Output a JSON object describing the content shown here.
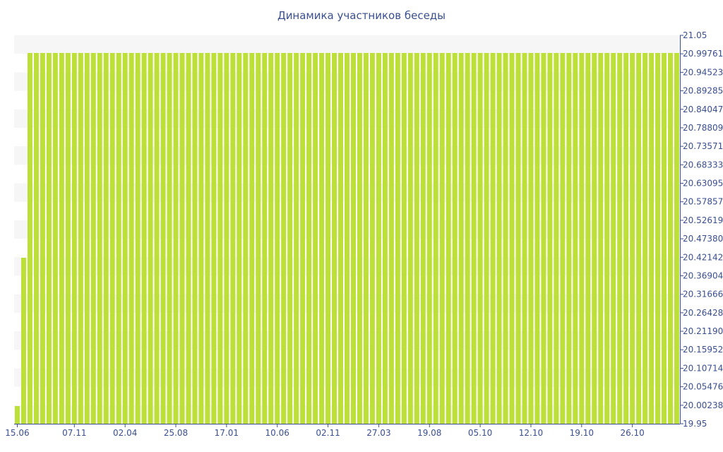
{
  "chart_data": {
    "type": "bar",
    "title": "Динамика участников беседы",
    "xlabel": "",
    "ylabel": "",
    "ylim": [
      19.95,
      21.05
    ],
    "y_ticks": [
      "19.95",
      "20.00238",
      "20.05476",
      "20.10714",
      "20.15952",
      "20.21190",
      "20.26428",
      "20.31666",
      "20.36904",
      "20.42142",
      "20.47380",
      "20.52619",
      "20.57857",
      "20.63095",
      "20.68333",
      "20.73571",
      "20.78809",
      "20.84047",
      "20.89285",
      "20.94523",
      "20.99761",
      "21.05"
    ],
    "x_tick_labels": [
      "15.06",
      "07.11",
      "02.04",
      "25.08",
      "17.01",
      "10.06",
      "02.11",
      "27.03",
      "19.08",
      "05.10",
      "12.10",
      "19.10",
      "26.10"
    ],
    "x_tick_positions": [
      0,
      9,
      17,
      25,
      33,
      41,
      49,
      57,
      65,
      73,
      81,
      89,
      97
    ],
    "bar_count": 105,
    "values": [
      20.0,
      20.42,
      21,
      21,
      21,
      21,
      21,
      21,
      21,
      21,
      21,
      21,
      21,
      21,
      21,
      21,
      21,
      21,
      21,
      21,
      21,
      21,
      21,
      21,
      21,
      21,
      21,
      21,
      21,
      21,
      21,
      21,
      21,
      21,
      21,
      21,
      21,
      21,
      21,
      21,
      21,
      21,
      21,
      21,
      21,
      21,
      21,
      21,
      21,
      21,
      21,
      21,
      21,
      21,
      21,
      21,
      21,
      21,
      21,
      21,
      21,
      21,
      21,
      21,
      21,
      21,
      21,
      21,
      21,
      21,
      21,
      21,
      21,
      21,
      21,
      21,
      21,
      21,
      21,
      21,
      21,
      21,
      21,
      21,
      21,
      21,
      21,
      21,
      21,
      21,
      21,
      21,
      21,
      21,
      21,
      21,
      21,
      21,
      21,
      21,
      21,
      21,
      21,
      21,
      21
    ],
    "bar_color": "#bde038",
    "band_color": "#f6f6f6",
    "axis_color": "#3a4f8f",
    "grid": false
  }
}
